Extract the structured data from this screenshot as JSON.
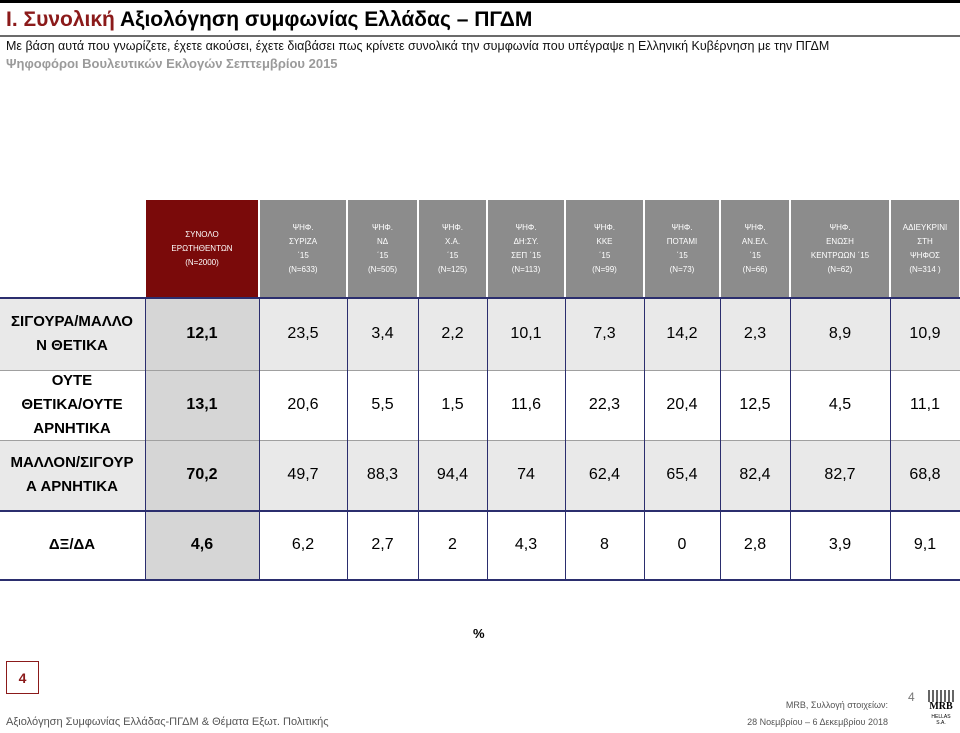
{
  "header": {
    "title_prefix": "Ι. Συνολική",
    "title_rest": " Αξιολόγηση συμφωνίας Ελλάδας – ΠΓΔΜ",
    "question": "Με βάση αυτά που γνωρίζετε, έχετε ακούσει, έχετε διαβάσει πως κρίνετε συνολικά την συμφωνία που υπέγραψε η Ελληνική Κυβέρνηση με την ΠΓΔΜ",
    "subtitle": "Ψηφοφόροι Βουλευτικών Εκλογών Σεπτεμβρίου 2015"
  },
  "table": {
    "columns": [
      "ΣΥΝΟΛΟ\nΕΡΩΤΗΘΕΝΤΩΝ\n(Ν=2000)",
      "ΨΗΦ.\nΣΥΡΙΖΑ\n΄15\n(N=633)",
      "ΨΗΦ.\nΝΔ\n΄15\n(N=505)",
      "ΨΗΦ.\nΧ.Α.\n΄15\n(N=125)",
      "ΨΗΦ.\nΔΗ:ΣΥ.\nΣΕΠ ΄15\n(N=113)",
      "ΨΗΦ.\nΚΚΕ\n΄15\n(N=99)",
      "ΨΗΦ.\nΠΟΤΑΜΙ\n΄15\n(N=73)",
      "ΨΗΦ.\nΑΝ.ΕΛ.\n΄15\n(N=66)",
      "ΨΗΦ.\nΕΝΩΣΗ\nΚΕΝΤΡΩΩΝ ΄15\n(N=62)",
      "ΑΔΙΕΥΚΡΙΝΙ\nΣΤΗ\nΨΗΦΟΣ\n(Ν=314 )"
    ],
    "rows": [
      {
        "label": "ΣΙΓΟΥΡΑ/ΜΑΛΛΟ\nΝ ΘΕΤΙΚΑ",
        "values": [
          "12,1",
          "23,5",
          "3,4",
          "2,2",
          "10,1",
          "7,3",
          "14,2",
          "2,3",
          "8,9",
          "10,9"
        ]
      },
      {
        "label": "ΟΥΤΕ\nΘΕΤΙΚΑ/ΟΥΤΕ\nΑΡΝΗΤΙΚΑ",
        "values": [
          "13,1",
          "20,6",
          "5,5",
          "1,5",
          "11,6",
          "22,3",
          "20,4",
          "12,5",
          "4,5",
          "11,1"
        ]
      },
      {
        "label": "ΜΑΛΛΟΝ/ΣΙΓΟΥΡ\nΑ ΑΡΝΗΤΙΚΑ",
        "values": [
          "70,2",
          "49,7",
          "88,3",
          "94,4",
          "74",
          "62,4",
          "65,4",
          "82,4",
          "82,7",
          "68,8"
        ]
      },
      {
        "label": "ΔΞ/ΔΑ",
        "values": [
          "4,6",
          "6,2",
          "2,7",
          "2",
          "4,3",
          "8",
          "0",
          "2,8",
          "3,9",
          "9,1"
        ]
      }
    ]
  },
  "unit": "%",
  "footer": {
    "page_box": "4",
    "left_text": "Αξιολόγηση Συμφωνίας Ελλάδας-ΠΓΔΜ & Θέματα Εξωτ. Πολιτικής",
    "source_line1": "MRB, Συλλογή στοιχείων:",
    "source_line2": "28 Νοεμβρίου – 6 Δεκεμβρίου 2018",
    "page_number": "4",
    "logo_text": "MRB",
    "logo_sub": "HELLAS S.A."
  }
}
